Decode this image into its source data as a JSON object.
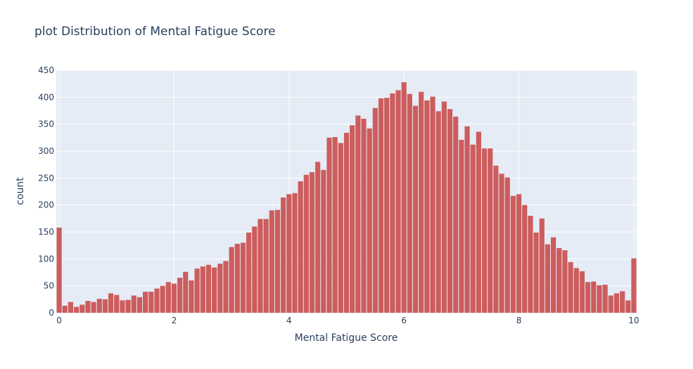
{
  "chart_data": {
    "type": "bar",
    "title": "plot Distribution of Mental Fatigue Score",
    "xlabel": "Mental Fatigue Score",
    "ylabel": "count",
    "xlim": [
      0,
      10
    ],
    "ylim": [
      0,
      450
    ],
    "bin_width": 0.1,
    "x_ticks": [
      0,
      2,
      4,
      6,
      8,
      10
    ],
    "y_ticks": [
      0,
      50,
      100,
      150,
      200,
      250,
      300,
      350,
      400,
      450
    ],
    "grid": true,
    "bar_color": "#cd5c5c",
    "plot_bg": "#e5ecf6",
    "x": [
      0,
      0.1,
      0.2,
      0.3,
      0.4,
      0.5,
      0.6,
      0.7,
      0.8,
      0.9,
      1.0,
      1.1,
      1.2,
      1.3,
      1.4,
      1.5,
      1.6,
      1.7,
      1.8,
      1.9,
      2.0,
      2.1,
      2.2,
      2.3,
      2.4,
      2.5,
      2.6,
      2.7,
      2.8,
      2.9,
      3.0,
      3.1,
      3.2,
      3.3,
      3.4,
      3.5,
      3.6,
      3.7,
      3.8,
      3.9,
      4.0,
      4.1,
      4.2,
      4.3,
      4.4,
      4.5,
      4.6,
      4.7,
      4.8,
      4.9,
      5.0,
      5.1,
      5.2,
      5.3,
      5.4,
      5.5,
      5.6,
      5.7,
      5.8,
      5.9,
      6.0,
      6.1,
      6.2,
      6.3,
      6.4,
      6.5,
      6.6,
      6.7,
      6.8,
      6.9,
      7.0,
      7.1,
      7.2,
      7.3,
      7.4,
      7.5,
      7.6,
      7.7,
      7.8,
      7.9,
      8.0,
      8.1,
      8.2,
      8.3,
      8.4,
      8.5,
      8.6,
      8.7,
      8.8,
      8.9,
      9.0,
      9.1,
      9.2,
      9.3,
      9.4,
      9.5,
      9.6,
      9.7,
      9.8,
      9.9,
      10.0
    ],
    "values": [
      158,
      13,
      20,
      11,
      15,
      22,
      20,
      26,
      25,
      36,
      33,
      23,
      24,
      32,
      29,
      39,
      39,
      45,
      50,
      57,
      54,
      65,
      76,
      60,
      82,
      86,
      89,
      84,
      91,
      96,
      122,
      128,
      130,
      149,
      160,
      174,
      174,
      190,
      191,
      214,
      220,
      222,
      244,
      256,
      261,
      280,
      265,
      325,
      326,
      315,
      334,
      348,
      366,
      360,
      342,
      380,
      398,
      399,
      407,
      413,
      428,
      406,
      384,
      410,
      394,
      401,
      374,
      392,
      378,
      364,
      321,
      346,
      312,
      336,
      305,
      305,
      273,
      258,
      251,
      217,
      220,
      200,
      180,
      149,
      175,
      127,
      140,
      120,
      116,
      94,
      83,
      77,
      57,
      58,
      51,
      52,
      32,
      36,
      40,
      23,
      101
    ]
  }
}
